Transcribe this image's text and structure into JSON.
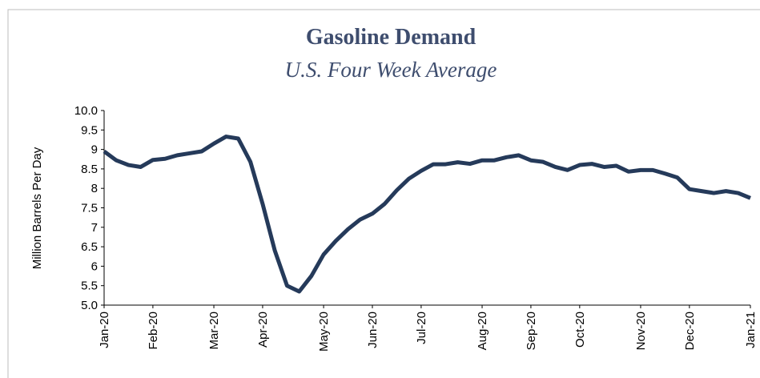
{
  "chart_data": {
    "type": "line",
    "title": "Gasoline Demand",
    "subtitle": "U.S. Four Week Average",
    "y_label": "Million Barrels Per Day",
    "categories": [
      "Jan-20",
      null,
      null,
      null,
      "Feb-20",
      null,
      null,
      null,
      null,
      "Mar-20",
      null,
      null,
      null,
      "Apr-20",
      null,
      null,
      null,
      null,
      "May-20",
      null,
      null,
      null,
      "Jun-20",
      null,
      null,
      null,
      "Jul-20",
      null,
      null,
      null,
      null,
      "Aug-20",
      null,
      null,
      null,
      "Sep-20",
      null,
      null,
      null,
      "Oct-20",
      null,
      null,
      null,
      null,
      "Nov-20",
      null,
      null,
      null,
      "Dec-20",
      null,
      null,
      null,
      null,
      "Jan-21"
    ],
    "series": [
      {
        "name": "Gasoline Demand",
        "color": "#253a5a",
        "values": [
          8.95,
          8.72,
          8.6,
          8.55,
          8.73,
          8.76,
          8.85,
          8.9,
          8.95,
          9.15,
          9.33,
          9.28,
          8.68,
          7.6,
          6.4,
          5.5,
          5.35,
          5.75,
          6.3,
          6.65,
          6.95,
          7.2,
          7.35,
          7.6,
          7.95,
          8.25,
          8.45,
          8.62,
          8.62,
          8.67,
          8.63,
          8.72,
          8.72,
          8.8,
          8.85,
          8.72,
          8.68,
          8.55,
          8.47,
          8.6,
          8.63,
          8.55,
          8.58,
          8.43,
          8.47,
          8.47,
          8.38,
          8.28,
          7.98,
          7.93,
          7.88,
          7.93,
          7.88,
          7.75
        ]
      }
    ],
    "ylim": [
      5.0,
      10.0
    ],
    "yticks": [
      {
        "value": 5,
        "label": "5.0"
      },
      5.5,
      6,
      6.5,
      7,
      7.5,
      8,
      8.5,
      9,
      9.5,
      {
        "value": 10,
        "label": "10.0"
      }
    ],
    "grid": false
  }
}
